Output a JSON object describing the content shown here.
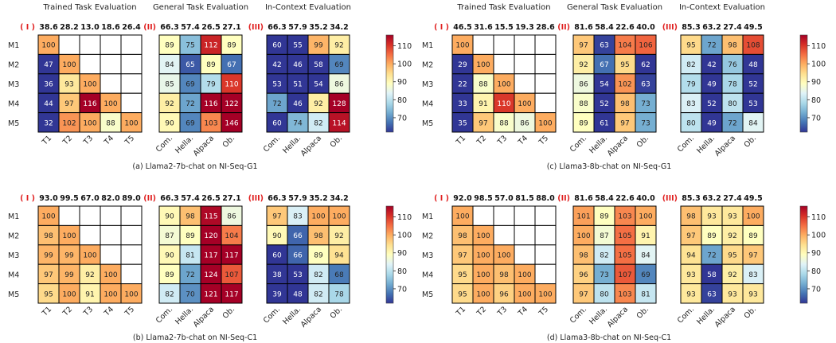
{
  "chart_data": {
    "type": "heatmap",
    "colorbar": {
      "ticks": [
        70,
        80,
        90,
        100,
        110
      ],
      "vmin": 62,
      "vmax": 116,
      "colors": [
        "#313695",
        "#4575b4",
        "#74add1",
        "#abd9e9",
        "#e0f3f8",
        "#ffffbf",
        "#fee090",
        "#fdae61",
        "#f46d43",
        "#d73027",
        "#a50026"
      ]
    },
    "panels": [
      {
        "caption": "(a) Llama2-7b-chat on NI-Seq-G1",
        "rows": [
          "M1",
          "M2",
          "M3",
          "M4",
          "M5"
        ],
        "blocks": [
          {
            "title": "Trained Task Evaluation",
            "tag": "( I )",
            "cols": [
              "T1",
              "T2",
              "T3",
              "T4",
              "T5"
            ],
            "header": [
              "38.6",
              "28.2",
              "13.0",
              "18.6",
              "26.4"
            ],
            "values": [
              [
                100,
                null,
                null,
                null,
                null
              ],
              [
                47,
                100,
                null,
                null,
                null
              ],
              [
                36,
                93,
                100,
                null,
                null
              ],
              [
                44,
                97,
                116,
                100,
                null
              ],
              [
                32,
                102,
                100,
                88,
                100
              ]
            ]
          },
          {
            "title": "General Task Evaluation",
            "tag": "(II)",
            "cols": [
              "Com.",
              "Hella.",
              "Alpaca",
              "Ob."
            ],
            "header": [
              "66.3",
              "57.4",
              "26.5",
              "27.1"
            ],
            "values": [
              [
                89,
                75,
                112,
                89
              ],
              [
                84,
                65,
                89,
                67
              ],
              [
                85,
                69,
                79,
                110
              ],
              [
                92,
                72,
                116,
                122
              ],
              [
                90,
                69,
                103,
                146
              ]
            ]
          },
          {
            "title": "In-Context Evaluation",
            "tag": "(III)",
            "cols": [
              "Com.",
              "Hella.",
              "Alpaca",
              "Ob."
            ],
            "header": [
              "66.3",
              "57.9",
              "35.2",
              "34.2"
            ],
            "values": [
              [
                60,
                55,
                99,
                92
              ],
              [
                42,
                46,
                58,
                69
              ],
              [
                53,
                51,
                54,
                86
              ],
              [
                72,
                46,
                92,
                128
              ],
              [
                60,
                74,
                82,
                114
              ]
            ]
          }
        ]
      },
      {
        "caption": "(c) Llama3-8b-chat on NI-Seq-G1",
        "rows": [
          "M1",
          "M2",
          "M3",
          "M4",
          "M5"
        ],
        "blocks": [
          {
            "title": "Trained Task Evaluation",
            "tag": "( I )",
            "cols": [
              "T1",
              "T2",
              "T3",
              "T4",
              "T5"
            ],
            "header": [
              "46.5",
              "31.6",
              "15.5",
              "19.3",
              "28.6"
            ],
            "values": [
              [
                100,
                null,
                null,
                null,
                null
              ],
              [
                29,
                100,
                null,
                null,
                null
              ],
              [
                22,
                88,
                100,
                null,
                null
              ],
              [
                33,
                91,
                110,
                100,
                null
              ],
              [
                35,
                97,
                88,
                86,
                100
              ]
            ]
          },
          {
            "title": "General Task Evaluation",
            "tag": "(II)",
            "cols": [
              "Com.",
              "Hella.",
              "Alpaca",
              "Ob."
            ],
            "header": [
              "81.6",
              "58.4",
              "22.6",
              "40.0"
            ],
            "values": [
              [
                97,
                63,
                104,
                106
              ],
              [
                92,
                67,
                95,
                62
              ],
              [
                86,
                54,
                102,
                63
              ],
              [
                88,
                52,
                98,
                73
              ],
              [
                89,
                61,
                97,
                73
              ]
            ]
          },
          {
            "title": "In-Context Evaluation",
            "tag": "(III)",
            "cols": [
              "Com.",
              "Hella.",
              "Alpaca",
              "Ob."
            ],
            "header": [
              "85.3",
              "63.2",
              "27.4",
              "49.5"
            ],
            "values": [
              [
                95,
                72,
                98,
                108
              ],
              [
                82,
                42,
                76,
                48
              ],
              [
                79,
                49,
                78,
                52
              ],
              [
                83,
                52,
                80,
                53
              ],
              [
                80,
                49,
                72,
                84
              ]
            ]
          }
        ]
      },
      {
        "caption": "(b) Llama2-7b-chat on NI-Seq-C1",
        "rows": [
          "M1",
          "M2",
          "M3",
          "M4",
          "M5"
        ],
        "blocks": [
          {
            "title": "",
            "tag": "( I )",
            "cols": [
              "T1",
              "T2",
              "T3",
              "T4",
              "T5"
            ],
            "header": [
              "93.0",
              "99.5",
              "67.0",
              "82.0",
              "89.0"
            ],
            "values": [
              [
                100,
                null,
                null,
                null,
                null
              ],
              [
                98,
                100,
                null,
                null,
                null
              ],
              [
                99,
                99,
                100,
                null,
                null
              ],
              [
                97,
                99,
                92,
                100,
                null
              ],
              [
                95,
                100,
                91,
                100,
                100
              ]
            ]
          },
          {
            "title": "",
            "tag": "(II)",
            "cols": [
              "Com.",
              "Hella.",
              "Alpaca",
              "Ob."
            ],
            "header": [
              "66.3",
              "57.4",
              "26.5",
              "27.1"
            ],
            "values": [
              [
                90,
                98,
                115,
                86
              ],
              [
                87,
                89,
                120,
                104
              ],
              [
                90,
                81,
                117,
                117
              ],
              [
                89,
                72,
                124,
                107
              ],
              [
                82,
                70,
                121,
                117
              ]
            ]
          },
          {
            "title": "",
            "tag": "(III)",
            "cols": [
              "Com.",
              "Hella.",
              "Alpaca",
              "Ob."
            ],
            "header": [
              "66.3",
              "57.9",
              "35.2",
              "34.2"
            ],
            "values": [
              [
                97,
                83,
                100,
                100
              ],
              [
                90,
                66,
                98,
                92
              ],
              [
                60,
                66,
                89,
                94
              ],
              [
                38,
                53,
                82,
                68
              ],
              [
                39,
                48,
                82,
                78
              ]
            ]
          }
        ]
      },
      {
        "caption": "(d) Llama3-8b-chat on NI-Seq-C1",
        "rows": [
          "M1",
          "M2",
          "M3",
          "M4",
          "M5"
        ],
        "blocks": [
          {
            "title": "",
            "tag": "( I )",
            "cols": [
              "T1",
              "T2",
              "T3",
              "T4",
              "T5"
            ],
            "header": [
              "92.0",
              "98.5",
              "57.0",
              "81.5",
              "88.0"
            ],
            "values": [
              [
                100,
                null,
                null,
                null,
                null
              ],
              [
                98,
                100,
                null,
                null,
                null
              ],
              [
                97,
                100,
                100,
                null,
                null
              ],
              [
                95,
                100,
                98,
                100,
                null
              ],
              [
                95,
                100,
                96,
                100,
                100
              ]
            ]
          },
          {
            "title": "",
            "tag": "(II)",
            "cols": [
              "Com.",
              "Hella.",
              "Alpaca",
              "Ob."
            ],
            "header": [
              "81.6",
              "58.4",
              "22.6",
              "40.0"
            ],
            "values": [
              [
                101,
                89,
                103,
                100
              ],
              [
                100,
                87,
                105,
                91
              ],
              [
                98,
                82,
                105,
                84
              ],
              [
                96,
                73,
                107,
                69
              ],
              [
                97,
                80,
                103,
                81
              ]
            ]
          },
          {
            "title": "",
            "tag": "(III)",
            "cols": [
              "Com.",
              "Hella.",
              "Alpaca",
              "Ob."
            ],
            "header": [
              "85.3",
              "63.2",
              "27.4",
              "49.5"
            ],
            "values": [
              [
                98,
                93,
                93,
                100
              ],
              [
                97,
                89,
                92,
                89
              ],
              [
                94,
                72,
                95,
                97
              ],
              [
                93,
                58,
                92,
                83
              ],
              [
                93,
                63,
                93,
                93
              ]
            ]
          }
        ]
      }
    ]
  }
}
